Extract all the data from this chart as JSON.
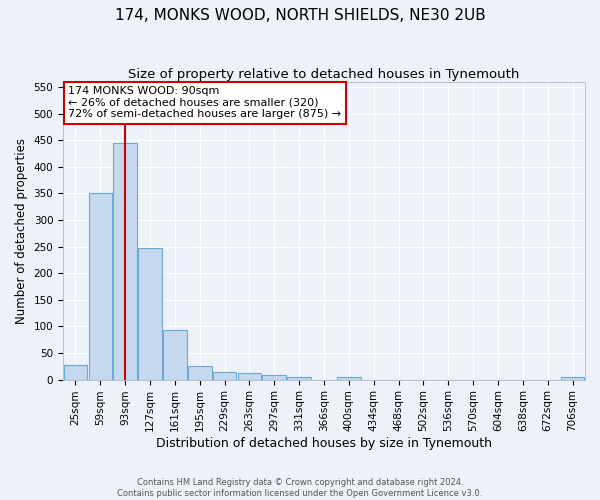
{
  "title": "174, MONKS WOOD, NORTH SHIELDS, NE30 2UB",
  "subtitle": "Size of property relative to detached houses in Tynemouth",
  "xlabel": "Distribution of detached houses by size in Tynemouth",
  "ylabel": "Number of detached properties",
  "bar_labels": [
    "25sqm",
    "59sqm",
    "93sqm",
    "127sqm",
    "161sqm",
    "195sqm",
    "229sqm",
    "263sqm",
    "297sqm",
    "331sqm",
    "366sqm",
    "400sqm",
    "434sqm",
    "468sqm",
    "502sqm",
    "536sqm",
    "570sqm",
    "604sqm",
    "638sqm",
    "672sqm",
    "706sqm"
  ],
  "bar_values": [
    28,
    350,
    445,
    247,
    93,
    25,
    14,
    12,
    9,
    5,
    0,
    5,
    0,
    0,
    0,
    0,
    0,
    0,
    0,
    0,
    4
  ],
  "bar_color": "#c5d8ee",
  "bar_edgecolor": "#6aaad4",
  "redline_x": 2,
  "ylim": [
    0,
    560
  ],
  "yticks": [
    0,
    50,
    100,
    150,
    200,
    250,
    300,
    350,
    400,
    450,
    500,
    550
  ],
  "annotation_title": "174 MONKS WOOD: 90sqm",
  "annotation_line1": "← 26% of detached houses are smaller (320)",
  "annotation_line2": "72% of semi-detached houses are larger (875) →",
  "annotation_box_facecolor": "#ffffff",
  "annotation_box_edgecolor": "#cc0000",
  "footer_line1": "Contains HM Land Registry data © Crown copyright and database right 2024.",
  "footer_line2": "Contains public sector information licensed under the Open Government Licence v3.0.",
  "background_color": "#edf2f9",
  "grid_color": "#ffffff",
  "title_fontsize": 11,
  "subtitle_fontsize": 9.5,
  "tick_fontsize": 7.5,
  "ylabel_fontsize": 8.5,
  "xlabel_fontsize": 9,
  "footer_fontsize": 6,
  "annotation_fontsize": 8
}
